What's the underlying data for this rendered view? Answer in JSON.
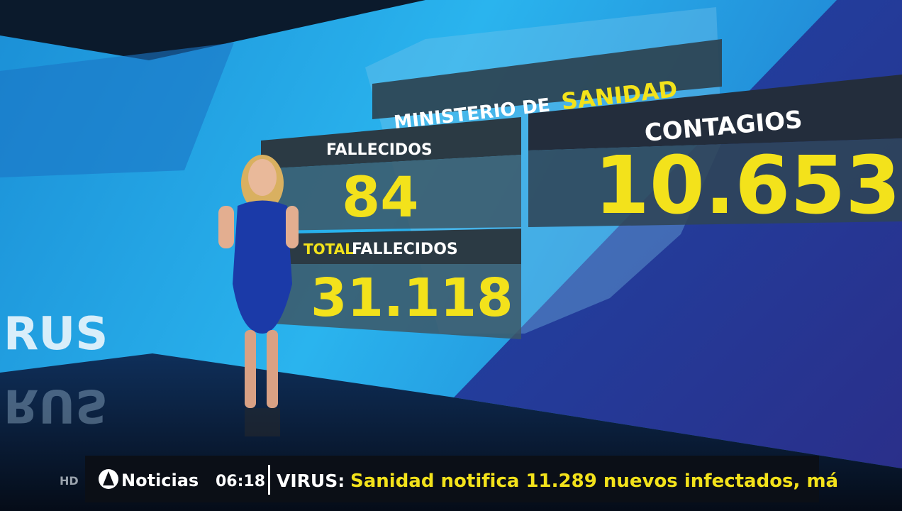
{
  "studio_screen": {
    "header": {
      "prefix": "MINISTERIO DE",
      "highlight": "SANIDAD"
    },
    "deaths": {
      "label": "FALLECIDOS",
      "value": "84"
    },
    "total_deaths": {
      "label_highlight": "TOTAL",
      "label": "FALLECIDOS",
      "value": "31.118"
    },
    "cases": {
      "label": "CONTAGIOS",
      "value": "10.653"
    },
    "wall_text": "RUS"
  },
  "ticker": {
    "quality": "HD",
    "channel": "Noticias",
    "time": "06:18",
    "topic": "VIRUS:",
    "headline": "Sanidad notifica 11.289 nuevos infectados, má"
  }
}
